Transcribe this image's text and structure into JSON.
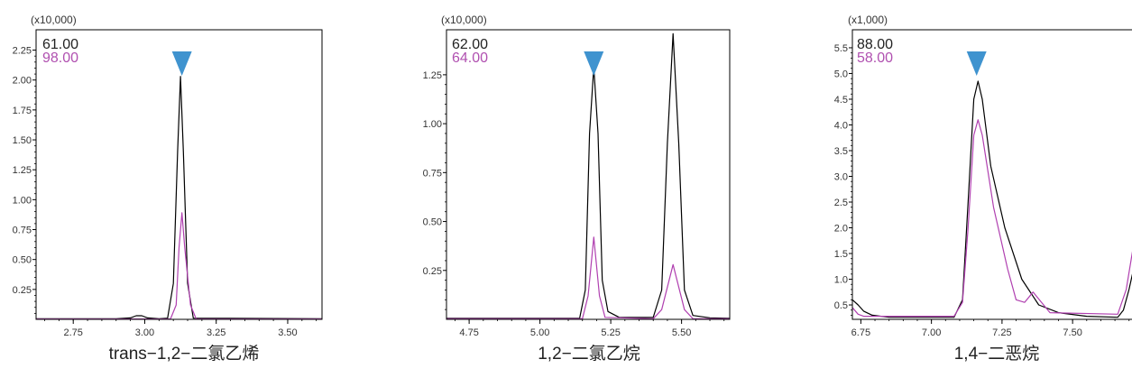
{
  "chart_data": [
    {
      "type": "line",
      "caption": "trans−1,2−二氯乙烯",
      "scale_label": "(x10,000)",
      "xlim": [
        2.62,
        3.62
      ],
      "ylim": [
        0,
        2.42
      ],
      "x_ticks": [
        2.75,
        3.0,
        3.25,
        3.5
      ],
      "x_tick_labels": [
        "2.75",
        "3.00",
        "3.25",
        "3.50"
      ],
      "y_ticks": [
        0.25,
        0.5,
        0.75,
        1.0,
        1.25,
        1.5,
        1.75,
        2.0,
        2.25
      ],
      "y_tick_labels": [
        "0.25",
        "0.50",
        "0.75",
        "1.00",
        "1.25",
        "1.50",
        "1.75",
        "2.00",
        "2.25"
      ],
      "marker_x": 3.13,
      "series": [
        {
          "name": "61.00",
          "color": "#000000",
          "points": [
            [
              2.62,
              0.005
            ],
            [
              2.9,
              0.005
            ],
            [
              2.95,
              0.012
            ],
            [
              2.97,
              0.03
            ],
            [
              2.99,
              0.03
            ],
            [
              3.01,
              0.012
            ],
            [
              3.05,
              0.005
            ],
            [
              3.08,
              0.01
            ],
            [
              3.1,
              0.3
            ],
            [
              3.115,
              1.4
            ],
            [
              3.125,
              2.03
            ],
            [
              3.135,
              1.4
            ],
            [
              3.15,
              0.3
            ],
            [
              3.17,
              0.01
            ],
            [
              3.62,
              0.005
            ]
          ]
        },
        {
          "name": "98.00",
          "color": "#b040b0",
          "points": [
            [
              2.62,
              0.003
            ],
            [
              3.09,
              0.003
            ],
            [
              3.11,
              0.12
            ],
            [
              3.12,
              0.6
            ],
            [
              3.13,
              0.89
            ],
            [
              3.14,
              0.6
            ],
            [
              3.16,
              0.12
            ],
            [
              3.18,
              0.003
            ],
            [
              3.62,
              0.003
            ]
          ]
        }
      ]
    },
    {
      "type": "line",
      "caption": "1,2−二氯乙烷",
      "scale_label": "(x10,000)",
      "xlim": [
        4.67,
        5.67
      ],
      "ylim": [
        0,
        1.48
      ],
      "x_ticks": [
        4.75,
        5.0,
        5.25,
        5.5
      ],
      "x_tick_labels": [
        "4.75",
        "5.00",
        "5.25",
        "5.50"
      ],
      "y_ticks": [
        0.25,
        0.5,
        0.75,
        1.0,
        1.25
      ],
      "y_tick_labels": [
        "0.25",
        "0.50",
        "0.75",
        "1.00",
        "1.25"
      ],
      "marker_x": 5.19,
      "series": [
        {
          "name": "62.00",
          "color": "#000000",
          "points": [
            [
              4.67,
              0.005
            ],
            [
              5.14,
              0.005
            ],
            [
              5.16,
              0.15
            ],
            [
              5.175,
              0.95
            ],
            [
              5.19,
              1.29
            ],
            [
              5.205,
              0.95
            ],
            [
              5.22,
              0.2
            ],
            [
              5.24,
              0.04
            ],
            [
              5.28,
              0.01
            ],
            [
              5.4,
              0.01
            ],
            [
              5.43,
              0.15
            ],
            [
              5.45,
              0.9
            ],
            [
              5.47,
              1.46
            ],
            [
              5.49,
              0.9
            ],
            [
              5.51,
              0.15
            ],
            [
              5.54,
              0.02
            ],
            [
              5.6,
              0.008
            ],
            [
              5.67,
              0.005
            ]
          ]
        },
        {
          "name": "64.00",
          "color": "#b040b0",
          "points": [
            [
              4.67,
              0.003
            ],
            [
              5.15,
              0.003
            ],
            [
              5.17,
              0.12
            ],
            [
              5.19,
              0.42
            ],
            [
              5.21,
              0.12
            ],
            [
              5.23,
              0.01
            ],
            [
              5.4,
              0.003
            ],
            [
              5.43,
              0.05
            ],
            [
              5.47,
              0.28
            ],
            [
              5.51,
              0.05
            ],
            [
              5.54,
              0.003
            ],
            [
              5.67,
              0.003
            ]
          ]
        }
      ]
    },
    {
      "type": "line",
      "caption": "1,4−二恶烷",
      "scale_label": "(x1,000)",
      "xlim": [
        6.72,
        7.72
      ],
      "ylim": [
        0.22,
        5.85
      ],
      "x_ticks": [
        6.75,
        7.0,
        7.25,
        7.5
      ],
      "x_tick_labels": [
        "6.75",
        "7.00",
        "7.25",
        "7.50"
      ],
      "y_ticks": [
        0.5,
        1.0,
        1.5,
        2.0,
        2.5,
        3.0,
        3.5,
        4.0,
        4.5,
        5.0,
        5.5
      ],
      "y_tick_labels": [
        "0.5",
        "1.0",
        "1.5",
        "2.0",
        "2.5",
        "3.0",
        "3.5",
        "4.0",
        "4.5",
        "5.0",
        "5.5"
      ],
      "marker_x": 7.16,
      "series": [
        {
          "name": "88.00",
          "color": "#000000",
          "points": [
            [
              6.72,
              0.6
            ],
            [
              6.74,
              0.5
            ],
            [
              6.76,
              0.38
            ],
            [
              6.79,
              0.3
            ],
            [
              6.85,
              0.26
            ],
            [
              7.08,
              0.26
            ],
            [
              7.11,
              0.6
            ],
            [
              7.13,
              2.5
            ],
            [
              7.15,
              4.5
            ],
            [
              7.165,
              4.85
            ],
            [
              7.18,
              4.5
            ],
            [
              7.21,
              3.2
            ],
            [
              7.26,
              2.0
            ],
            [
              7.32,
              1.0
            ],
            [
              7.38,
              0.5
            ],
            [
              7.45,
              0.35
            ],
            [
              7.55,
              0.28
            ],
            [
              7.66,
              0.26
            ],
            [
              7.68,
              0.4
            ],
            [
              7.7,
              0.8
            ],
            [
              7.72,
              1.3
            ]
          ]
        },
        {
          "name": "58.00",
          "color": "#b040b0",
          "points": [
            [
              6.72,
              0.45
            ],
            [
              6.74,
              0.32
            ],
            [
              6.76,
              0.28
            ],
            [
              7.08,
              0.28
            ],
            [
              7.11,
              0.55
            ],
            [
              7.13,
              2.0
            ],
            [
              7.15,
              3.8
            ],
            [
              7.165,
              4.1
            ],
            [
              7.18,
              3.8
            ],
            [
              7.22,
              2.4
            ],
            [
              7.27,
              1.2
            ],
            [
              7.3,
              0.6
            ],
            [
              7.33,
              0.55
            ],
            [
              7.36,
              0.75
            ],
            [
              7.39,
              0.55
            ],
            [
              7.42,
              0.35
            ],
            [
              7.66,
              0.32
            ],
            [
              7.69,
              0.8
            ],
            [
              7.72,
              1.8
            ]
          ]
        }
      ]
    }
  ]
}
